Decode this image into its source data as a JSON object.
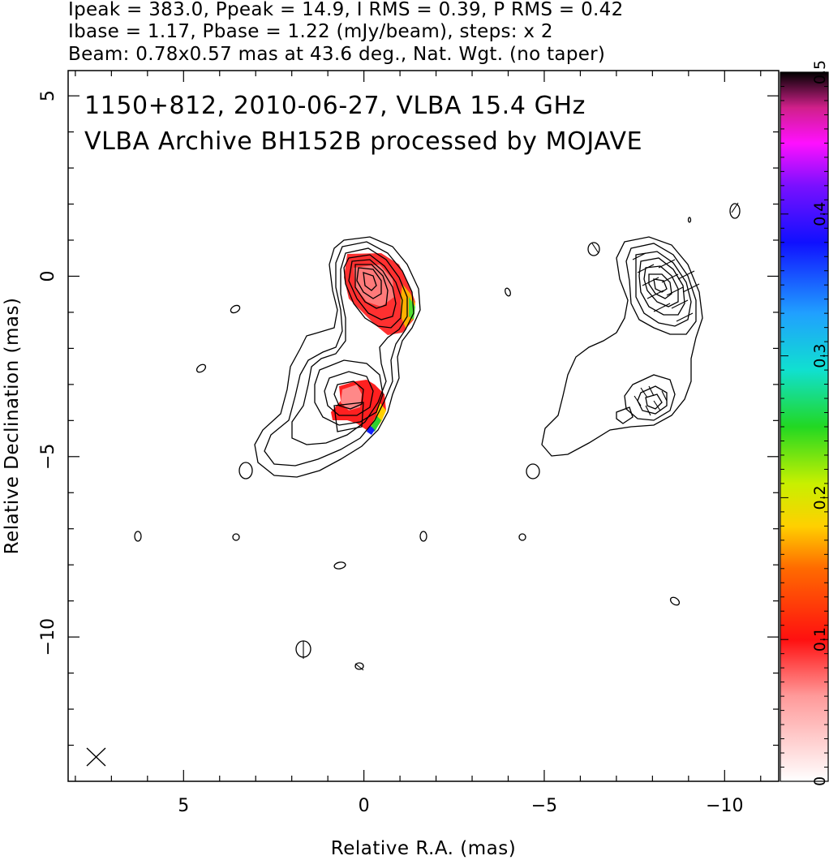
{
  "header_lines": [
    "Ipeak = 383.0, Ppeak = 14.9, I RMS = 0.39, P RMS = 0.42",
    "Ibase = 1.17, Pbase = 1.22 (mJy/beam), steps: x 2",
    "Beam: 0.78x0.57 mas at 43.6 deg., Nat. Wgt. (no taper)"
  ],
  "plot_title_lines": [
    "1150+812, 2010-06-27, VLBA 15.4 GHz",
    "VLBA Archive BH152B processed by MOJAVE"
  ],
  "chart_data": {
    "type": "heatmap",
    "xlabel": "Relative R.A. (mas)",
    "ylabel": "Relative Declination (mas)",
    "xlim": [
      8.2,
      -11.5
    ],
    "ylim": [
      -14,
      5.7
    ],
    "x_ticks": [
      5,
      0,
      -5,
      -10
    ],
    "x_tick_labels": [
      "5",
      "0",
      "−5",
      "−10"
    ],
    "y_ticks": [
      5,
      0,
      -5,
      -10
    ],
    "y_tick_labels": [
      "5",
      "0",
      "−5",
      "−10"
    ],
    "colorbar": {
      "min": 0,
      "max": 0.5,
      "ticks": [
        0,
        0.1,
        0.2,
        0.3,
        0.4,
        0.5
      ],
      "tick_labels": [
        "0",
        "0.1",
        "0.2",
        "0.3",
        "0.4",
        "0.5"
      ]
    },
    "panels": [
      "total intensity contours with fractional polarization colour map",
      "total intensity contours with EVPA sticks (offset 9.0 mas west)"
    ],
    "core": {
      "x": 0.1,
      "y": -0.3,
      "peak_mJy_per_beam": 383.0
    },
    "components": [
      {
        "x": 0.3,
        "y": -0.6,
        "frac_pol": 0.05
      },
      {
        "x": 0.4,
        "y": -3.6,
        "frac_pol": 0.12
      }
    ],
    "beam": {
      "major_mas": 0.78,
      "minor_mas": 0.57,
      "pa_deg": 43.6,
      "position": "bottom-left"
    }
  },
  "colors": {
    "contour": "#000000",
    "frame": "#000000",
    "colormap_low": "#ffffff",
    "colormap_red": "#ff1a1a",
    "colormap_green": "#33dd33",
    "colormap_blue": "#1a3dff",
    "colormap_magenta": "#ff20ff",
    "colormap_high": "#000000"
  }
}
